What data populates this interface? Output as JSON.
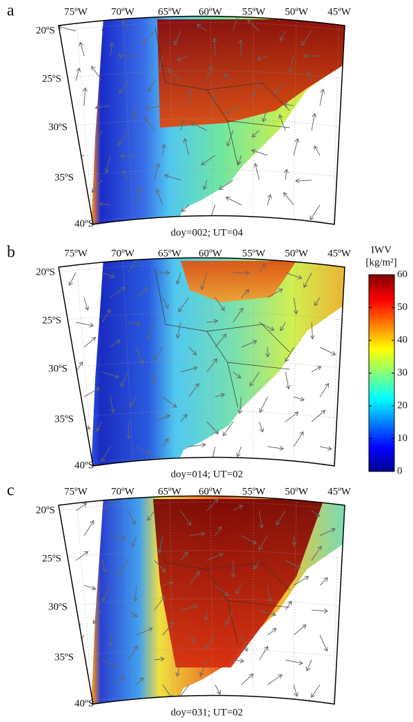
{
  "panels": [
    {
      "label": "a",
      "caption": "doy=002; UT=04"
    },
    {
      "label": "b",
      "caption": "doy=014; UT=02"
    },
    {
      "label": "c",
      "caption": "doy=031; UT=02"
    }
  ],
  "lon_labels": [
    "75ºW",
    "70ºW",
    "65ºW",
    "60ºW",
    "55ºW",
    "50ºW",
    "45ºW"
  ],
  "lat_labels": [
    "20ºS",
    "25ºS",
    "30ºS",
    "35ºS",
    "40ºS"
  ],
  "colorbar": {
    "title": "IWV",
    "unit": "[kg/m²]",
    "lim": [
      0,
      60
    ],
    "ticks": [
      0,
      10,
      20,
      30,
      40,
      50,
      60
    ]
  }
}
